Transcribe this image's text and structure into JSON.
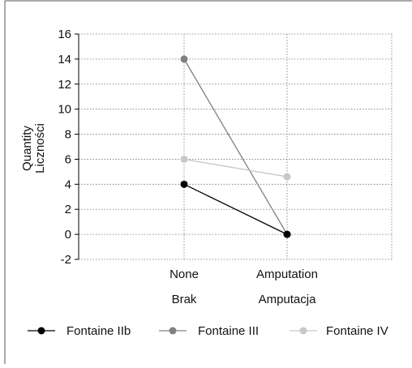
{
  "chart_data": {
    "type": "line",
    "ylabel": [
      "Quantity",
      "Liczności"
    ],
    "categories": [
      {
        "en": "None",
        "pl": "Brak"
      },
      {
        "en": "Amputation",
        "pl": "Amputacja"
      }
    ],
    "ylim": [
      -2,
      16
    ],
    "yticks": [
      "16",
      "14",
      "12",
      "10",
      "8",
      "6",
      "4",
      "2",
      "0",
      "-2"
    ],
    "grid": true,
    "legend_position": "bottom",
    "series": [
      {
        "name": "Fontaine IIb",
        "values": [
          4,
          0
        ],
        "color": "#000000"
      },
      {
        "name": "Fontaine III",
        "values": [
          14,
          0
        ],
        "color": "#808080"
      },
      {
        "name": "Fontaine IV",
        "values": [
          6,
          4.6
        ],
        "color": "#c8c8c8"
      }
    ]
  }
}
